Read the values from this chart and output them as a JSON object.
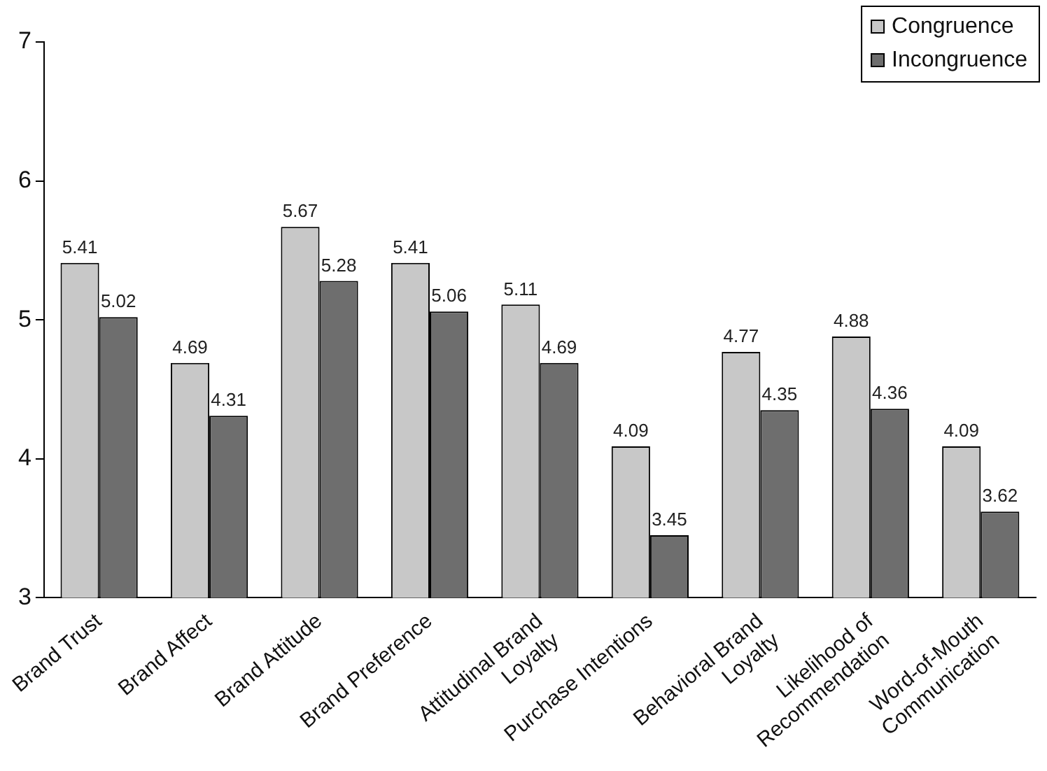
{
  "chart_data": {
    "type": "bar",
    "categories": [
      "Brand Trust",
      "Brand Affect",
      "Brand Attitude",
      "Brand Preference",
      "Attitudinal Brand\nLoyalty",
      "Purchase Intentions",
      "Behavioral Brand\nLoyalty",
      "Likelihood of\nRecommendation",
      "Word-of-Mouth\nCommunication"
    ],
    "series": [
      {
        "name": "Congruence",
        "color": "#c8c8c8",
        "values": [
          5.41,
          4.69,
          5.67,
          5.41,
          5.11,
          4.09,
          4.77,
          4.88,
          4.09
        ]
      },
      {
        "name": "Incongruence",
        "color": "#6e6e6e",
        "values": [
          5.02,
          4.31,
          5.28,
          5.06,
          4.69,
          3.45,
          4.35,
          4.36,
          3.62
        ]
      }
    ],
    "ylim": [
      3,
      7
    ],
    "yticks": [
      3,
      4,
      5,
      6,
      7
    ],
    "grid": false,
    "legend": "top right",
    "data_labels": true
  }
}
